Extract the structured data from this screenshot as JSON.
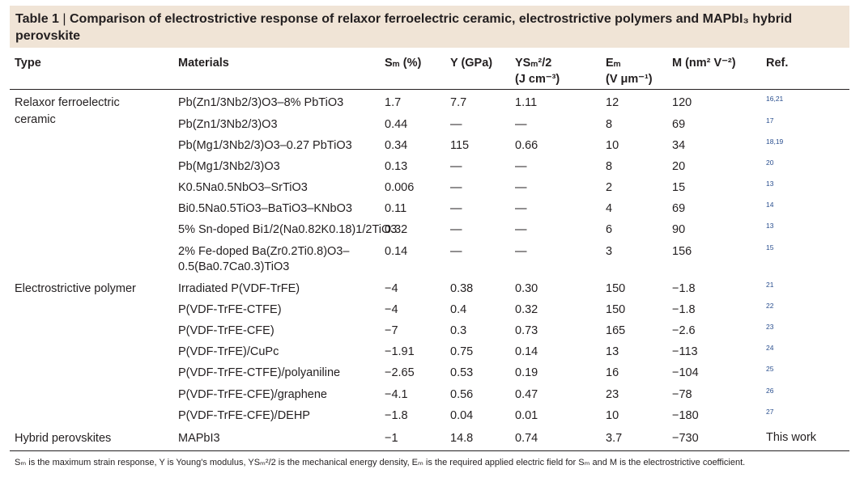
{
  "caption": {
    "label": "Table 1",
    "separator": " | ",
    "title": "Comparison of electrostrictive response of relaxor ferroelectric ceramic, electrostrictive polymers and MAPbI₃ hybrid perovskite"
  },
  "headers": {
    "type": "Type",
    "materials": "Materials",
    "sm": "Sₘ (%)",
    "y": "Y (GPa)",
    "ysm": "YSₘ²/2",
    "ysm_unit": "(J cm⁻³)",
    "em": "Eₘ",
    "em_unit": "(V μm⁻¹)",
    "m": "M (nm² V⁻²)",
    "ref": "Ref."
  },
  "groups": [
    {
      "label_line1": "Relaxor ferroelectric",
      "label_line2": "ceramic"
    },
    {
      "label_line1": "Electrostrictive polymer",
      "label_line2": ""
    },
    {
      "label_line1": "Hybrid perovskites",
      "label_line2": ""
    }
  ],
  "rows": [
    {
      "material": "Pb(Zn1/3Nb2/3)O3–8% PbTiO3",
      "sm": "1.7",
      "y": "7.7",
      "ysm": "1.11",
      "em": "12",
      "m": "120",
      "ref": "16,21"
    },
    {
      "material": "Pb(Zn1/3Nb2/3)O3",
      "sm": "0.44",
      "y": "—",
      "ysm": "—",
      "em": "8",
      "m": "69",
      "ref": "17"
    },
    {
      "material": "Pb(Mg1/3Nb2/3)O3–0.27 PbTiO3",
      "sm": "0.34",
      "y": "115",
      "ysm": "0.66",
      "em": "10",
      "m": "34",
      "ref": "18,19"
    },
    {
      "material": "Pb(Mg1/3Nb2/3)O3",
      "sm": "0.13",
      "y": "—",
      "ysm": "—",
      "em": "8",
      "m": "20",
      "ref": "20"
    },
    {
      "material": "K0.5Na0.5NbO3–SrTiO3",
      "sm": "0.006",
      "y": "—",
      "ysm": "—",
      "em": "2",
      "m": "15",
      "ref": "13"
    },
    {
      "material": "Bi0.5Na0.5TiO3–BaTiO3–KNbO3",
      "sm": "0.11",
      "y": "—",
      "ysm": "—",
      "em": "4",
      "m": "69",
      "ref": "14"
    },
    {
      "material": "5% Sn-doped Bi1/2(Na0.82K0.18)1/2TiO3",
      "sm": "0.32",
      "y": "—",
      "ysm": "—",
      "em": "6",
      "m": "90",
      "ref": "13"
    },
    {
      "material": "2% Fe-doped Ba(Zr0.2Ti0.8)O3–0.5(Ba0.7Ca0.3)TiO3",
      "sm": "0.14",
      "y": "—",
      "ysm": "—",
      "em": "3",
      "m": "156",
      "ref": "15"
    },
    {
      "material": "Irradiated P(VDF-TrFE)",
      "sm": "−4",
      "y": "0.38",
      "ysm": "0.30",
      "em": "150",
      "m": "−1.8",
      "ref": "21"
    },
    {
      "material": "P(VDF-TrFE-CTFE)",
      "sm": "−4",
      "y": "0.4",
      "ysm": "0.32",
      "em": "150",
      "m": "−1.8",
      "ref": "22"
    },
    {
      "material": "P(VDF-TrFE-CFE)",
      "sm": "−7",
      "y": "0.3",
      "ysm": "0.73",
      "em": "165",
      "m": "−2.6",
      "ref": "23"
    },
    {
      "material": "P(VDF-TrFE)/CuPc",
      "sm": "−1.91",
      "y": "0.75",
      "ysm": "0.14",
      "em": "13",
      "m": "−113",
      "ref": "24"
    },
    {
      "material": "P(VDF-TrFE-CTFE)/polyaniline",
      "sm": "−2.65",
      "y": "0.53",
      "ysm": "0.19",
      "em": "16",
      "m": "−104",
      "ref": "25"
    },
    {
      "material": "P(VDF-TrFE-CFE)/graphene",
      "sm": "−4.1",
      "y": "0.56",
      "ysm": "0.47",
      "em": "23",
      "m": "−78",
      "ref": "26"
    },
    {
      "material": "P(VDF-TrFE-CFE)/DEHP",
      "sm": "−1.8",
      "y": "0.04",
      "ysm": "0.01",
      "em": "10",
      "m": "−180",
      "ref": "27"
    },
    {
      "material": "MAPbI3",
      "sm": "−1",
      "y": "14.8",
      "ysm": "0.74",
      "em": "3.7",
      "m": "−730",
      "ref": "This work"
    }
  ],
  "footnote": "Sₘ is the maximum strain response, Y is Young's modulus, YSₘ²/2 is the mechanical energy density, Eₘ is the required applied electric field for Sₘ and M is the electrostrictive coefficient."
}
